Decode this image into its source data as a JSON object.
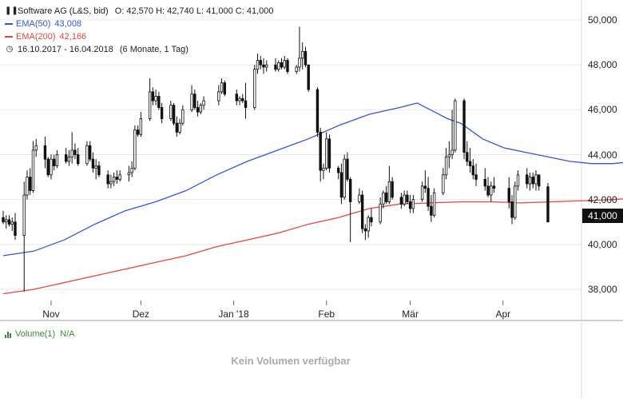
{
  "header": {
    "instrument": "Software AG (L&S, bid)",
    "ohlc": "O: 42,570  H: 42,740  L: 41,000  C: 41,000",
    "ema50_label": "EMA(50)",
    "ema50_value": "43,008",
    "ema200_label": "EMA(200)",
    "ema200_value": "42,166",
    "range_text": "16.10.2017 - 16.04.2018",
    "period_text": "(6 Monate, 1 Tag)"
  },
  "last_price_label": "41,000",
  "volume": {
    "label": "Volume(1)",
    "value": "N/A",
    "empty_text": "Kein Volumen verfügbar"
  },
  "colors": {
    "ema50": "#3355dd",
    "ema200": "#e8453c",
    "candle": "#111111",
    "grid": "#e8e8e8",
    "volume": "#3a8a3a"
  },
  "chart_data": {
    "type": "candlestick",
    "y_ticks": [
      "50,000",
      "48,000",
      "46,000",
      "44,000",
      "42,000",
      "40,000",
      "38,000"
    ],
    "y_tick_values": [
      50,
      48,
      46,
      44,
      42,
      40,
      38
    ],
    "x_ticks": [
      "Nov",
      "Dez",
      "Jan '18",
      "Feb",
      "Mär",
      "Apr"
    ],
    "x_tick_dates": [
      "2017-11-01",
      "2017-12-01",
      "2018-01-01",
      "2018-02-01",
      "2018-03-01",
      "2018-04-01"
    ],
    "x_range": [
      "2017-10-16",
      "2018-04-16"
    ],
    "y_range": [
      37.3,
      50.7
    ],
    "grid": "horizontal",
    "ema50": [
      [
        0,
        39.5
      ],
      [
        7,
        39.7
      ],
      [
        14,
        40.2
      ],
      [
        21,
        40.9
      ],
      [
        28,
        41.5
      ],
      [
        35,
        41.9
      ],
      [
        42,
        42.4
      ],
      [
        49,
        43.1
      ],
      [
        56,
        43.7
      ],
      [
        63,
        44.2
      ],
      [
        70,
        44.7
      ],
      [
        77,
        45.3
      ],
      [
        84,
        45.8
      ],
      [
        91,
        46.1
      ],
      [
        95,
        46.3
      ],
      [
        98,
        46.0
      ],
      [
        102,
        45.6
      ],
      [
        105,
        45.4
      ],
      [
        110,
        44.7
      ],
      [
        115,
        44.3
      ],
      [
        120,
        44.1
      ],
      [
        125,
        43.9
      ],
      [
        130,
        43.7
      ],
      [
        135,
        43.6
      ],
      [
        140,
        43.6
      ],
      [
        145,
        43.7
      ],
      [
        150,
        43.6
      ],
      [
        155,
        43.5
      ],
      [
        160,
        43.3
      ],
      [
        165,
        43.1
      ],
      [
        170,
        43.0
      ]
    ],
    "ema200": [
      [
        0,
        37.8
      ],
      [
        7,
        38.0
      ],
      [
        14,
        38.3
      ],
      [
        21,
        38.6
      ],
      [
        28,
        38.9
      ],
      [
        35,
        39.2
      ],
      [
        42,
        39.5
      ],
      [
        49,
        39.9
      ],
      [
        56,
        40.2
      ],
      [
        63,
        40.5
      ],
      [
        70,
        40.9
      ],
      [
        77,
        41.2
      ],
      [
        84,
        41.6
      ],
      [
        91,
        41.8
      ],
      [
        98,
        41.85
      ],
      [
        105,
        41.9
      ],
      [
        112,
        41.9
      ],
      [
        119,
        41.85
      ],
      [
        126,
        41.9
      ],
      [
        133,
        41.95
      ],
      [
        140,
        42.0
      ],
      [
        147,
        42.1
      ],
      [
        154,
        42.15
      ],
      [
        161,
        42.2
      ],
      [
        168,
        42.2
      ],
      [
        170,
        42.17
      ]
    ],
    "candles": [
      [
        "2017-10-16",
        41.2,
        41.5,
        40.9,
        41.0
      ],
      [
        "2017-10-17",
        41.0,
        41.3,
        40.7,
        41.1
      ],
      [
        "2017-10-18",
        41.1,
        41.3,
        40.8,
        40.9
      ],
      [
        "2017-10-19",
        40.9,
        41.2,
        40.6,
        41.0
      ],
      [
        "2017-10-20",
        41.0,
        41.4,
        40.2,
        40.4
      ],
      [
        "2017-10-23",
        40.4,
        42.8,
        37.9,
        42.2
      ],
      [
        "2017-10-24",
        42.2,
        43.3,
        42.0,
        43.0
      ],
      [
        "2017-10-25",
        43.0,
        43.4,
        42.2,
        42.4
      ],
      [
        "2017-10-26",
        42.4,
        44.6,
        42.3,
        44.2
      ],
      [
        "2017-10-27",
        44.2,
        44.7,
        43.9,
        44.4
      ],
      [
        "2017-10-30",
        44.4,
        44.8,
        43.4,
        43.8
      ],
      [
        "2017-10-31",
        43.8,
        43.9,
        43.0,
        43.1
      ],
      [
        "2017-11-01",
        43.1,
        44.0,
        42.9,
        43.8
      ],
      [
        "2017-11-02",
        43.8,
        44.0,
        43.3,
        43.5
      ],
      [
        "2017-11-03",
        43.5,
        44.2,
        43.4,
        44.0
      ],
      [
        "2017-11-06",
        44.0,
        44.3,
        43.6,
        43.7
      ],
      [
        "2017-11-07",
        43.7,
        44.2,
        43.5,
        43.9
      ],
      [
        "2017-11-08",
        43.9,
        45.0,
        43.6,
        44.2
      ],
      [
        "2017-11-09",
        44.2,
        44.5,
        43.8,
        44.0
      ],
      [
        "2017-11-10",
        44.0,
        44.3,
        43.5,
        43.6
      ],
      [
        "2017-11-13",
        43.6,
        44.6,
        43.5,
        44.4
      ],
      [
        "2017-11-14",
        44.4,
        44.6,
        43.7,
        43.8
      ],
      [
        "2017-11-15",
        43.8,
        44.1,
        43.2,
        43.4
      ],
      [
        "2017-11-16",
        43.4,
        43.8,
        42.9,
        43.5
      ],
      [
        "2017-11-17",
        43.5,
        43.7,
        43.0,
        43.1
      ],
      [
        "2017-11-20",
        43.1,
        43.3,
        42.5,
        42.7
      ],
      [
        "2017-11-21",
        42.7,
        43.1,
        42.5,
        42.8
      ],
      [
        "2017-11-22",
        42.8,
        43.2,
        42.6,
        43.0
      ],
      [
        "2017-11-23",
        43.0,
        43.3,
        42.7,
        42.9
      ],
      [
        "2017-11-24",
        42.9,
        43.3,
        42.8,
        43.1
      ],
      [
        "2017-11-27",
        43.1,
        43.5,
        42.8,
        43.2
      ],
      [
        "2017-11-28",
        43.2,
        43.7,
        43.0,
        43.4
      ],
      [
        "2017-11-29",
        43.4,
        45.3,
        43.3,
        45.1
      ],
      [
        "2017-11-30",
        45.1,
        45.3,
        44.8,
        44.9
      ],
      [
        "2017-12-01",
        44.9,
        45.9,
        44.8,
        45.6
      ],
      [
        "2017-12-04",
        45.6,
        47.4,
        45.5,
        46.8
      ],
      [
        "2017-12-05",
        46.8,
        47.0,
        46.2,
        46.4
      ],
      [
        "2017-12-06",
        46.4,
        46.9,
        46.2,
        46.6
      ],
      [
        "2017-12-07",
        46.6,
        46.8,
        46.0,
        46.1
      ],
      [
        "2017-12-08",
        46.1,
        46.3,
        45.4,
        45.6
      ],
      [
        "2017-12-11",
        45.6,
        46.4,
        45.5,
        46.2
      ],
      [
        "2017-12-12",
        46.2,
        46.3,
        45.3,
        45.4
      ],
      [
        "2017-12-13",
        45.4,
        45.7,
        44.8,
        45.0
      ],
      [
        "2017-12-14",
        45.0,
        45.6,
        44.9,
        45.4
      ],
      [
        "2017-12-15",
        45.4,
        46.2,
        45.3,
        46.0
      ],
      [
        "2017-12-18",
        46.0,
        47.1,
        45.9,
        46.7
      ],
      [
        "2017-12-19",
        46.7,
        46.9,
        46.0,
        46.1
      ],
      [
        "2017-12-20",
        46.1,
        46.4,
        45.7,
        45.9
      ],
      [
        "2017-12-21",
        45.9,
        46.3,
        45.8,
        46.2
      ],
      [
        "2017-12-22",
        46.2,
        46.6,
        46.0,
        46.4
      ],
      [
        "2017-12-27",
        46.4,
        47.1,
        46.2,
        46.8
      ],
      [
        "2017-12-28",
        46.8,
        47.4,
        46.7,
        47.2
      ],
      [
        "2017-12-29",
        47.2,
        47.3,
        46.6,
        46.7
      ],
      [
        "2018-01-02",
        46.7,
        46.9,
        46.2,
        46.4
      ],
      [
        "2018-01-03",
        46.4,
        46.6,
        46.2,
        46.5
      ],
      [
        "2018-01-04",
        46.5,
        46.7,
        46.3,
        46.4
      ],
      [
        "2018-01-05",
        46.4,
        47.2,
        45.6,
        46.1
      ],
      [
        "2018-01-08",
        46.1,
        48.0,
        46.0,
        47.8
      ],
      [
        "2018-01-09",
        47.8,
        48.5,
        47.6,
        48.2
      ],
      [
        "2018-01-10",
        48.2,
        48.4,
        47.8,
        48.0
      ],
      [
        "2018-01-11",
        48.0,
        48.3,
        47.6,
        47.9
      ],
      [
        "2018-01-12",
        47.9,
        48.2,
        47.7,
        48.0
      ],
      [
        "2018-01-15",
        48.0,
        48.3,
        47.7,
        47.8
      ],
      [
        "2018-01-16",
        47.8,
        48.2,
        47.7,
        48.1
      ],
      [
        "2018-01-17",
        48.1,
        48.3,
        47.8,
        47.9
      ],
      [
        "2018-01-18",
        47.9,
        48.4,
        47.8,
        48.2
      ],
      [
        "2018-01-19",
        48.2,
        48.3,
        47.6,
        47.7
      ],
      [
        "2018-01-22",
        47.7,
        48.0,
        47.6,
        47.9
      ],
      [
        "2018-01-23",
        47.9,
        49.7,
        47.7,
        48.3
      ],
      [
        "2018-01-24",
        48.3,
        49.0,
        47.8,
        48.6
      ],
      [
        "2018-01-25",
        48.6,
        48.8,
        47.9,
        48.0
      ],
      [
        "2018-01-26",
        48.0,
        47.9,
        46.8,
        46.9
      ],
      [
        "2018-01-29",
        46.9,
        47.0,
        44.8,
        45.0
      ],
      [
        "2018-01-30",
        45.0,
        45.2,
        42.8,
        43.3
      ],
      [
        "2018-01-31",
        43.3,
        43.6,
        42.9,
        43.4
      ],
      [
        "2018-02-01",
        43.4,
        45.0,
        43.3,
        44.7
      ],
      [
        "2018-02-02",
        44.7,
        44.9,
        43.2,
        43.4
      ],
      [
        "2018-02-05",
        43.4,
        43.5,
        42.9,
        43.2
      ],
      [
        "2018-02-06",
        43.2,
        43.6,
        41.8,
        42.1
      ],
      [
        "2018-02-07",
        42.1,
        44.0,
        42.0,
        43.8
      ],
      [
        "2018-02-08",
        43.8,
        44.1,
        42.8,
        42.9
      ],
      [
        "2018-02-09",
        42.9,
        43.0,
        40.1,
        41.9
      ],
      [
        "2018-02-12",
        41.9,
        42.5,
        41.8,
        42.2
      ],
      [
        "2018-02-13",
        42.2,
        42.4,
        40.5,
        40.7
      ],
      [
        "2018-02-14",
        40.7,
        40.9,
        40.2,
        40.6
      ],
      [
        "2018-02-15",
        40.6,
        41.3,
        40.3,
        41.2
      ],
      [
        "2018-02-16",
        41.2,
        41.6,
        40.8,
        41.0
      ],
      [
        "2018-02-19",
        41.0,
        42.1,
        40.9,
        41.8
      ],
      [
        "2018-02-20",
        41.8,
        42.4,
        41.6,
        42.3
      ],
      [
        "2018-02-21",
        42.3,
        42.6,
        41.8,
        41.9
      ],
      [
        "2018-02-22",
        41.9,
        43.5,
        41.8,
        42.8
      ],
      [
        "2018-02-23",
        42.8,
        43.0,
        42.0,
        42.1
      ],
      [
        "2018-02-26",
        42.1,
        42.3,
        41.6,
        41.8
      ],
      [
        "2018-02-27",
        41.8,
        42.4,
        41.7,
        42.2
      ],
      [
        "2018-02-28",
        42.2,
        42.4,
        41.8,
        41.9
      ],
      [
        "2018-03-01",
        41.9,
        42.2,
        41.4,
        41.6
      ],
      [
        "2018-03-02",
        41.6,
        42.2,
        41.4,
        42.0
      ],
      [
        "2018-03-05",
        42.0,
        42.8,
        41.9,
        42.6
      ],
      [
        "2018-03-06",
        42.6,
        43.3,
        42.3,
        42.5
      ],
      [
        "2018-03-07",
        42.5,
        43.0,
        41.5,
        41.7
      ],
      [
        "2018-03-08",
        41.7,
        42.2,
        41.0,
        41.3
      ],
      [
        "2018-03-09",
        41.3,
        42.5,
        41.2,
        42.3
      ],
      [
        "2018-03-12",
        42.3,
        43.4,
        42.2,
        43.1
      ],
      [
        "2018-03-13",
        43.1,
        44.3,
        42.9,
        43.9
      ],
      [
        "2018-03-14",
        43.9,
        44.6,
        43.4,
        44.0
      ],
      [
        "2018-03-15",
        44.0,
        46.0,
        43.8,
        44.2
      ],
      [
        "2018-03-16",
        44.2,
        46.5,
        44.1,
        46.4
      ],
      [
        "2018-03-19",
        46.4,
        46.5,
        43.8,
        44.1
      ],
      [
        "2018-03-20",
        44.1,
        44.6,
        43.5,
        43.7
      ],
      [
        "2018-03-21",
        43.7,
        44.3,
        43.2,
        43.5
      ],
      [
        "2018-03-22",
        43.5,
        43.8,
        42.9,
        43.1
      ],
      [
        "2018-03-23",
        43.1,
        43.6,
        42.6,
        42.9
      ],
      [
        "2018-03-26",
        42.9,
        43.4,
        42.4,
        42.6
      ],
      [
        "2018-03-27",
        42.6,
        43.0,
        42.1,
        42.2
      ],
      [
        "2018-03-28",
        42.2,
        42.8,
        41.9,
        42.6
      ],
      [
        "2018-03-29",
        42.6,
        43.0,
        42.3,
        42.5
      ],
      [
        "2018-04-03",
        42.5,
        43.0,
        41.6,
        41.9
      ],
      [
        "2018-04-04",
        41.9,
        42.2,
        40.9,
        41.2
      ],
      [
        "2018-04-05",
        41.2,
        42.8,
        41.1,
        42.6
      ],
      [
        "2018-04-06",
        42.6,
        43.3,
        42.4,
        43.1
      ],
      [
        "2018-04-09",
        43.1,
        43.4,
        42.5,
        42.7
      ],
      [
        "2018-04-10",
        42.7,
        43.2,
        42.4,
        43.0
      ],
      [
        "2018-04-11",
        43.0,
        43.2,
        42.5,
        42.7
      ],
      [
        "2018-04-12",
        42.7,
        43.3,
        42.4,
        43.1
      ],
      [
        "2018-04-13",
        43.1,
        43.0,
        42.4,
        42.6
      ],
      [
        "2018-04-16",
        42.57,
        42.74,
        41.0,
        41.0
      ]
    ]
  }
}
